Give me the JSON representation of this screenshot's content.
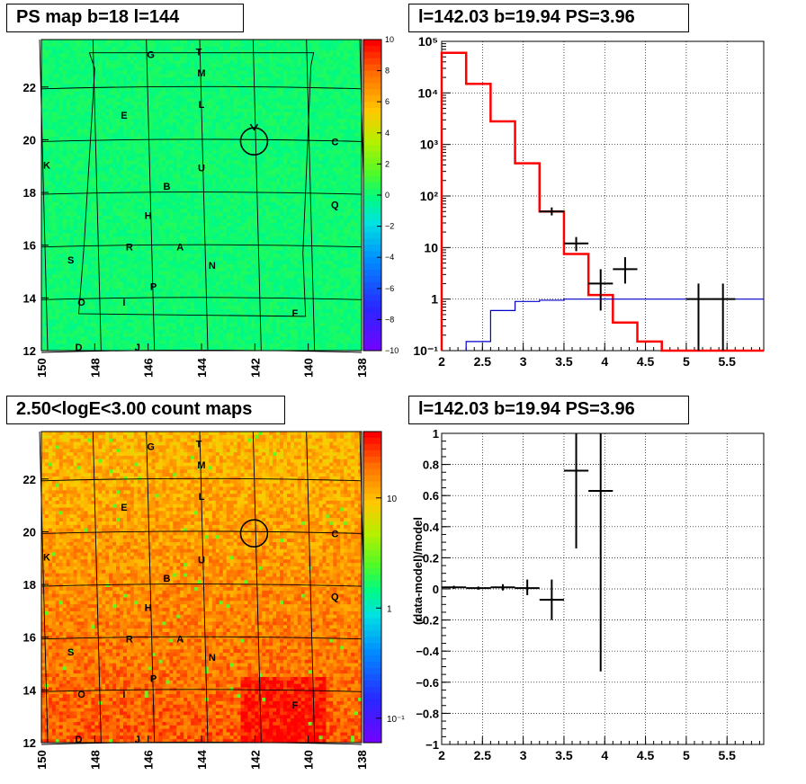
{
  "panels": {
    "tl_title": "PS map b=18 l=144",
    "tr_title": "l=142.03 b=19.94 PS=3.96",
    "bl_title": "2.50<logE<3.00 count maps",
    "br_title": "l=142.03 b=19.94 PS=3.96"
  },
  "chart_data": [
    {
      "type": "heatmap",
      "title": "PS map b=18 l=144",
      "x_ticks": [
        "150",
        "148",
        "146",
        "144",
        "142",
        "140",
        "138"
      ],
      "x_tick_values": [
        150,
        148,
        146,
        144,
        142,
        140,
        138
      ],
      "y_ticks": [
        "12",
        "14",
        "16",
        "18",
        "20",
        "22"
      ],
      "y_tick_values": [
        12,
        14,
        16,
        18,
        20,
        22
      ],
      "xlim": [
        150,
        138
      ],
      "ylim": [
        12,
        23.8
      ],
      "colorbar_ticks": [
        "10",
        "8",
        "6",
        "4",
        "2",
        "0",
        "−2",
        "−4",
        "−6",
        "−8",
        "−10"
      ],
      "colorbar_range": [
        -10,
        10
      ],
      "dominant_value": 0.3,
      "source_labels": [
        {
          "t": "G",
          "l": 145.9,
          "b": 23.1
        },
        {
          "t": "T",
          "l": 144.1,
          "b": 23.2
        },
        {
          "t": "M",
          "l": 144.0,
          "b": 22.4
        },
        {
          "t": "L",
          "l": 144.0,
          "b": 21.2
        },
        {
          "t": "E",
          "l": 146.9,
          "b": 20.8
        },
        {
          "t": "C",
          "l": 139.0,
          "b": 19.8
        },
        {
          "t": "K",
          "l": 149.8,
          "b": 18.9
        },
        {
          "t": "U",
          "l": 144.0,
          "b": 18.8
        },
        {
          "t": "B",
          "l": 145.3,
          "b": 18.1
        },
        {
          "t": "Q",
          "l": 139.0,
          "b": 17.4
        },
        {
          "t": "H",
          "l": 146.0,
          "b": 17.0
        },
        {
          "t": "R",
          "l": 146.7,
          "b": 15.8
        },
        {
          "t": "A",
          "l": 144.8,
          "b": 15.8
        },
        {
          "t": "S",
          "l": 148.9,
          "b": 15.3
        },
        {
          "t": "N",
          "l": 143.6,
          "b": 15.1
        },
        {
          "t": "P",
          "l": 145.8,
          "b": 14.3
        },
        {
          "t": "O",
          "l": 148.5,
          "b": 13.7
        },
        {
          "t": "I",
          "l": 146.9,
          "b": 13.7
        },
        {
          "t": "F",
          "l": 140.5,
          "b": 13.3
        },
        {
          "t": "D",
          "l": 148.6,
          "b": 12.0
        },
        {
          "t": "J",
          "l": 146.4,
          "b": 12.0
        }
      ],
      "target": {
        "l": 142.03,
        "b": 19.94
      }
    },
    {
      "type": "line",
      "title": "l=142.03 b=19.94 PS=3.96",
      "y_scale": "log",
      "xlim": [
        2,
        5.95
      ],
      "ylim": [
        0.1,
        100000
      ],
      "x_ticks": [
        "2",
        "2.5",
        "3",
        "3.5",
        "4",
        "4.5",
        "5",
        "5.5"
      ],
      "x_tick_values": [
        2,
        2.5,
        3,
        3.5,
        4,
        4.5,
        5,
        5.5
      ],
      "y_ticks": [
        "10⁻¹",
        "1",
        "10",
        "10²",
        "10³",
        "10⁴",
        "10⁵"
      ],
      "y_tick_values": [
        0.1,
        1,
        10,
        100,
        1000,
        10000,
        100000
      ],
      "series": [
        {
          "color": "#ff0000",
          "edges": [
            2,
            2.3,
            2.6,
            2.9,
            3.2,
            3.5,
            3.8,
            4.1,
            4.4,
            4.7,
            5.0,
            5.3,
            5.95
          ],
          "values": [
            60000,
            15000,
            2800,
            430,
            50,
            7.5,
            1.2,
            0.35,
            0.15,
            0.1,
            0.1,
            0.1
          ]
        },
        {
          "color": "#0000cc",
          "edges": [
            2.3,
            2.6,
            2.9,
            3.2,
            3.5,
            3.8,
            4.1,
            4.4,
            4.7,
            5.0,
            5.3,
            5.95
          ],
          "values": [
            0.15,
            0.6,
            0.9,
            0.95,
            1,
            1,
            1,
            1,
            1,
            1,
            1
          ]
        }
      ],
      "data_points": [
        {
          "x": 3.35,
          "y": 50,
          "xerr": 0.15,
          "ylo": 42,
          "yhi": 60
        },
        {
          "x": 3.65,
          "y": 12,
          "xerr": 0.15,
          "ylo": 8.5,
          "yhi": 16
        },
        {
          "x": 3.95,
          "y": 2,
          "xerr": 0.15,
          "ylo": 0.6,
          "yhi": 3.8
        },
        {
          "x": 4.25,
          "y": 3.8,
          "xerr": 0.15,
          "ylo": 2,
          "yhi": 6.5
        },
        {
          "x": 5.15,
          "y": 1,
          "xerr": 0.15,
          "ylo": 0.1,
          "yhi": 2
        },
        {
          "x": 5.45,
          "y": 1,
          "xerr": 0.15,
          "ylo": 0.1,
          "yhi": 2
        }
      ]
    },
    {
      "type": "heatmap",
      "title": "2.50<logE<3.00 count maps",
      "x_ticks": [
        "150",
        "148",
        "146",
        "144",
        "142",
        "140",
        "138"
      ],
      "x_tick_values": [
        150,
        148,
        146,
        144,
        142,
        140,
        138
      ],
      "y_ticks": [
        "12",
        "14",
        "16",
        "18",
        "20",
        "22"
      ],
      "y_tick_values": [
        12,
        14,
        16,
        18,
        20,
        22
      ],
      "xlim": [
        150,
        138
      ],
      "ylim": [
        12,
        23.8
      ],
      "colorbar_scale": "log",
      "colorbar_ticks": [
        "10",
        "1",
        "10⁻¹"
      ],
      "colorbar_tick_values": [
        10,
        1,
        0.1
      ],
      "colorbar_range": [
        0.06,
        40
      ]
    },
    {
      "type": "scatter",
      "title": "l=142.03 b=19.94 PS=3.96",
      "ylabel": "(data-model)/model",
      "xlim": [
        2,
        5.95
      ],
      "ylim": [
        -1,
        1
      ],
      "x_ticks": [
        "2",
        "2.5",
        "3",
        "3.5",
        "4",
        "4.5",
        "5",
        "5.5"
      ],
      "x_tick_values": [
        2,
        2.5,
        3,
        3.5,
        4,
        4.5,
        5,
        5.5
      ],
      "y_ticks": [
        "−1",
        "−0.8",
        "−0.6",
        "−0.4",
        "−0.2",
        "0",
        "0.2",
        "0.4",
        "0.6",
        "0.8",
        "1"
      ],
      "y_tick_values": [
        -1,
        -0.8,
        -0.6,
        -0.4,
        -0.2,
        0,
        0.2,
        0.4,
        0.6,
        0.8,
        1
      ],
      "data_points": [
        {
          "x": 2.15,
          "y": 0.01,
          "xerr": 0.15,
          "ylo": 0.0,
          "yhi": 0.02
        },
        {
          "x": 2.45,
          "y": 0.005,
          "xerr": 0.15,
          "ylo": -0.005,
          "yhi": 0.015
        },
        {
          "x": 2.75,
          "y": 0.01,
          "xerr": 0.15,
          "ylo": -0.01,
          "yhi": 0.03
        },
        {
          "x": 3.05,
          "y": 0.005,
          "xerr": 0.15,
          "ylo": -0.04,
          "yhi": 0.06
        },
        {
          "x": 3.35,
          "y": -0.07,
          "xerr": 0.15,
          "ylo": -0.2,
          "yhi": 0.06
        },
        {
          "x": 3.65,
          "y": 0.76,
          "xerr": 0.15,
          "ylo": 0.26,
          "yhi": 1.0
        },
        {
          "x": 3.95,
          "y": 0.63,
          "xerr": 0.15,
          "ylo": -0.53,
          "yhi": 1.0
        }
      ]
    }
  ]
}
